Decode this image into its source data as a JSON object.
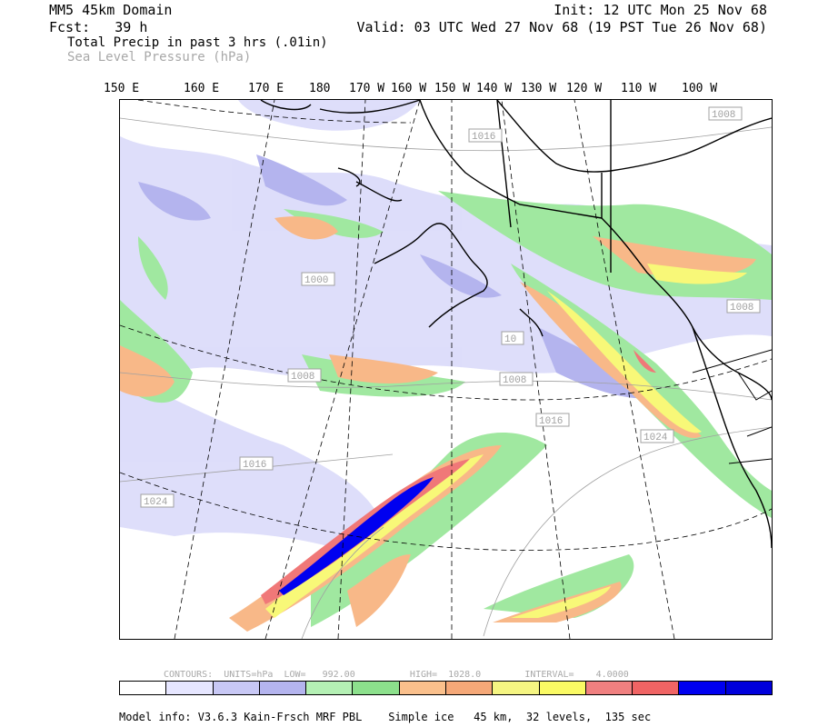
{
  "header": {
    "domain": "MM5 45km Domain",
    "fcst": "Fcst:   39 h",
    "init": "Init: 12 UTC Mon 25 Nov 68",
    "valid": "Valid: 03 UTC Wed 27 Nov 68 (19 PST Tue 26 Nov 68)",
    "field1": "Total Precip in past 3 hrs (.01in)",
    "field2": "Sea Level Pressure (hPa)"
  },
  "longitudes": [
    "150 E",
    "160 E",
    "170 E",
    "180",
    "170 W",
    "160 W",
    "150 W",
    "140 W",
    "130 W",
    "120 W",
    "110 W",
    "100 W"
  ],
  "isobar_labels": [
    "1008",
    "1016",
    "1000",
    "1008",
    "1016",
    "1008",
    "1008",
    "1016",
    "1024",
    "1016",
    "1024",
    "10"
  ],
  "contour_info": "CONTOURS:  UNITS=hPa  LOW=   992.00          HIGH=  1028.0        INTERVAL=    4.0000",
  "colorbar": [
    "#ffffff",
    "#e6e6ff",
    "#c8c8f5",
    "#b4b4ee",
    "#b4f0b4",
    "#8ce08c",
    "#fac08c",
    "#f5a878",
    "#f5f582",
    "#fafa64",
    "#f08080",
    "#f06464",
    "#0000f0",
    "#0000dc"
  ],
  "model_info": "Model info: V3.6.3 Kain-Frsch MRF PBL    Simple ice   45 km,  32 levels,  135 sec",
  "colors": {
    "text": "#000000",
    "secondary": "#a8a8a8"
  }
}
